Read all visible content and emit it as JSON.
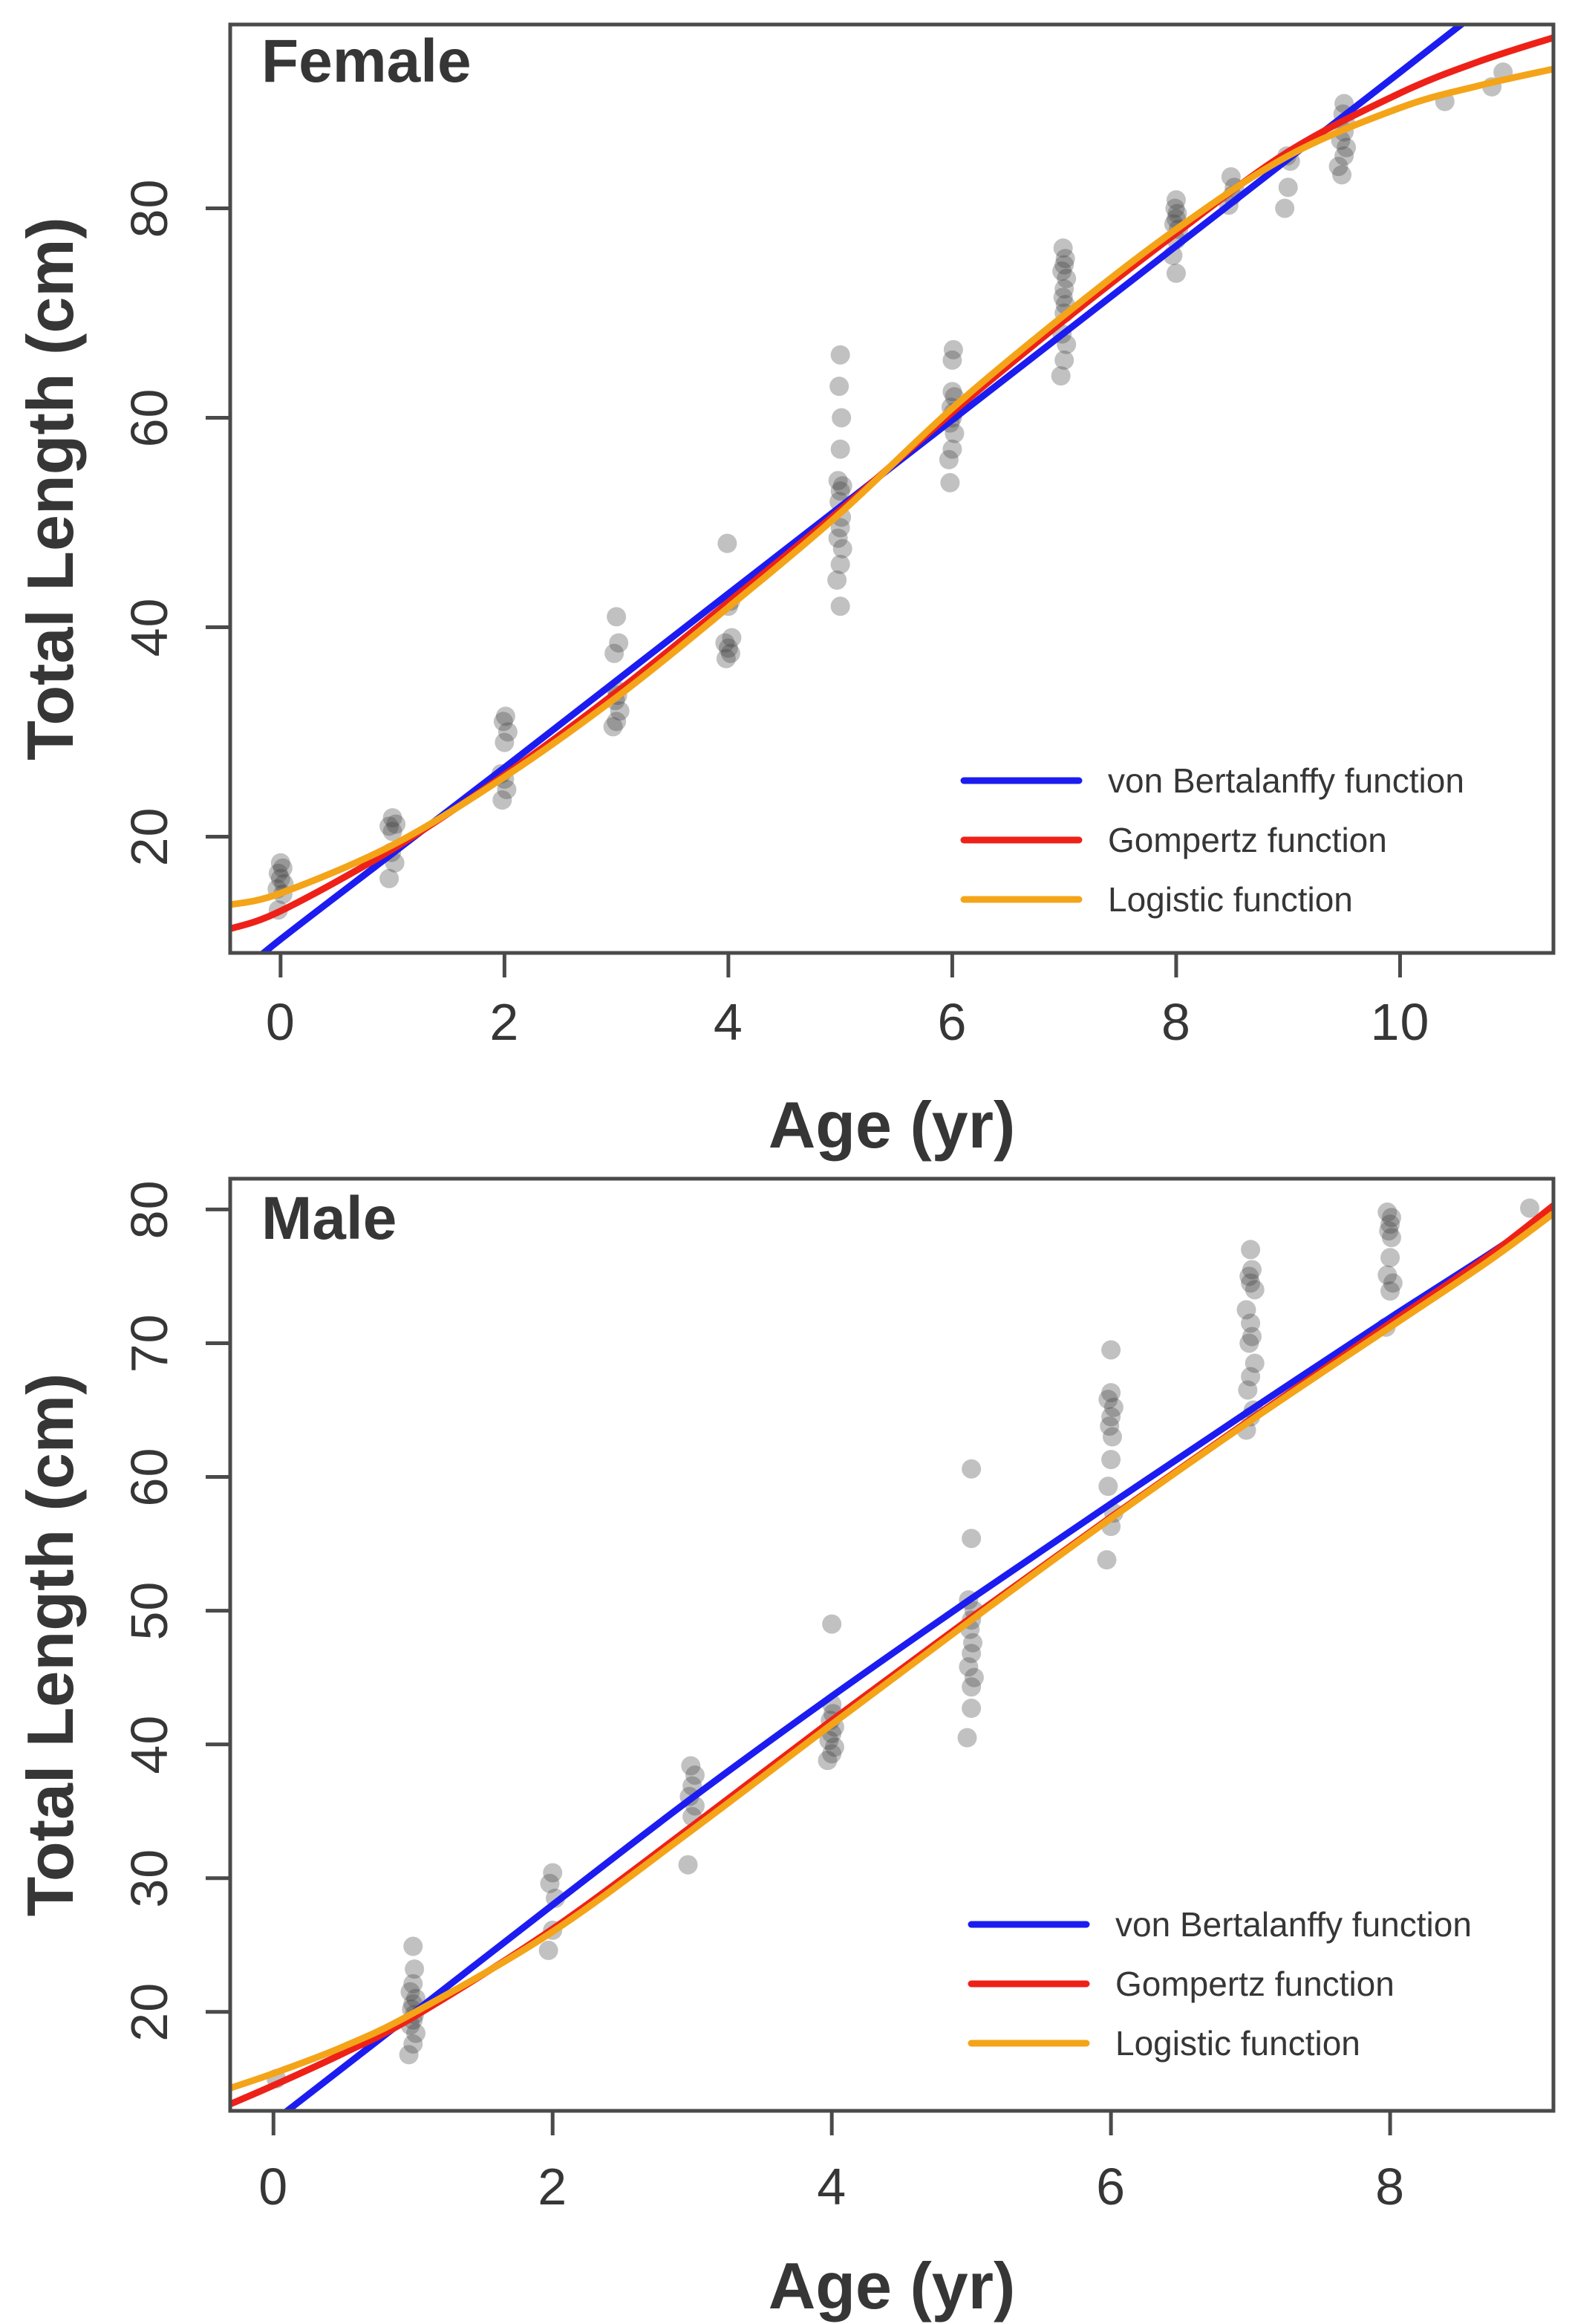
{
  "figure": {
    "background": "#ffffff",
    "axis_color": "#4a4a4a",
    "text_color": "#363636",
    "point_color": "#3d3d3d",
    "point_opacity": 0.32
  },
  "chart_data": [
    {
      "type": "scatter",
      "panel": "female",
      "title": "Female",
      "xlabel": "Age (yr)",
      "ylabel": "Total Length (cm)",
      "xlim": [
        -0.45,
        11.37
      ],
      "ylim": [
        8.9,
        97.55
      ],
      "xticks": [
        0,
        2,
        4,
        6,
        8,
        10
      ],
      "yticks": [
        20,
        40,
        60,
        80
      ],
      "grid": false,
      "legend_position": "lower-right",
      "legend": [
        {
          "label": "von Bertalanffy function",
          "color": "#1c1cf0"
        },
        {
          "label": "Gompertz function",
          "color": "#ee2118"
        },
        {
          "label": "Logistic function",
          "color": "#f4a418"
        }
      ],
      "points": [
        [
          -0.02,
          13
        ],
        [
          0.02,
          14.5
        ],
        [
          -0.03,
          15
        ],
        [
          0.03,
          15.5
        ],
        [
          0,
          16
        ],
        [
          -0.02,
          16.5
        ],
        [
          0.02,
          17
        ],
        [
          0,
          17.5
        ],
        [
          0.97,
          16
        ],
        [
          1.02,
          17.5
        ],
        [
          0.99,
          18.5
        ],
        [
          1.0,
          20.5
        ],
        [
          0.97,
          21
        ],
        [
          1.03,
          21.2
        ],
        [
          1.0,
          21.8
        ],
        [
          1.98,
          23.5
        ],
        [
          2.02,
          24.5
        ],
        [
          2.0,
          25.5
        ],
        [
          1.97,
          26
        ],
        [
          2.0,
          29
        ],
        [
          2.03,
          30
        ],
        [
          1.99,
          31
        ],
        [
          2.01,
          31.5
        ],
        [
          2.97,
          30.5
        ],
        [
          3.0,
          31
        ],
        [
          3.03,
          32
        ],
        [
          2.99,
          33
        ],
        [
          3.01,
          33.5
        ],
        [
          3.0,
          34
        ],
        [
          2.98,
          37.5
        ],
        [
          3.02,
          38.5
        ],
        [
          3.0,
          41
        ],
        [
          3.98,
          37
        ],
        [
          4.02,
          37.5
        ],
        [
          4.0,
          38
        ],
        [
          3.97,
          38.5
        ],
        [
          4.03,
          39
        ],
        [
          4.0,
          42
        ],
        [
          4.02,
          42.5
        ],
        [
          3.99,
          48
        ],
        [
          5.0,
          42
        ],
        [
          4.97,
          44.5
        ],
        [
          5.0,
          46
        ],
        [
          5.02,
          47.5
        ],
        [
          4.98,
          48.5
        ],
        [
          5.0,
          49.5
        ],
        [
          5.01,
          50.5
        ],
        [
          4.99,
          52
        ],
        [
          5.0,
          53
        ],
        [
          5.02,
          53.5
        ],
        [
          4.98,
          54
        ],
        [
          5.0,
          57
        ],
        [
          5.01,
          60
        ],
        [
          4.99,
          63
        ],
        [
          5.0,
          66
        ],
        [
          5.98,
          53.8
        ],
        [
          5.97,
          56
        ],
        [
          6.0,
          57
        ],
        [
          6.02,
          58.5
        ],
        [
          5.98,
          59.5
        ],
        [
          6.0,
          60
        ],
        [
          6.01,
          60.5
        ],
        [
          5.99,
          61
        ],
        [
          6.02,
          62
        ],
        [
          6.0,
          62.5
        ],
        [
          6.0,
          65.5
        ],
        [
          6.01,
          66.5
        ],
        [
          6.97,
          64
        ],
        [
          7.0,
          65.5
        ],
        [
          7.02,
          67
        ],
        [
          6.98,
          68
        ],
        [
          7.0,
          70
        ],
        [
          7.01,
          70.8
        ],
        [
          6.99,
          71.5
        ],
        [
          7.0,
          72.3
        ],
        [
          7.02,
          73.3
        ],
        [
          6.98,
          74
        ],
        [
          7.0,
          74.6
        ],
        [
          7.01,
          75.2
        ],
        [
          6.99,
          76.2
        ],
        [
          8.0,
          73.8
        ],
        [
          7.97,
          75.5
        ],
        [
          8.0,
          77
        ],
        [
          8.02,
          78
        ],
        [
          7.98,
          78.5
        ],
        [
          8.0,
          79
        ],
        [
          8.01,
          79.5
        ],
        [
          7.99,
          80
        ],
        [
          8.0,
          80.8
        ],
        [
          8.47,
          80.3
        ],
        [
          8.5,
          81.2
        ],
        [
          8.52,
          82
        ],
        [
          8.49,
          83
        ],
        [
          8.97,
          80
        ],
        [
          9.0,
          82
        ],
        [
          9.02,
          84.5
        ],
        [
          8.99,
          85
        ],
        [
          9.48,
          83.2
        ],
        [
          9.45,
          84
        ],
        [
          9.5,
          85
        ],
        [
          9.52,
          85.8
        ],
        [
          9.47,
          86.5
        ],
        [
          9.5,
          87.3
        ],
        [
          9.51,
          88.2
        ],
        [
          9.49,
          89
        ],
        [
          9.5,
          90
        ],
        [
          10.4,
          90.2
        ],
        [
          10.82,
          91.6
        ],
        [
          10.92,
          93
        ]
      ],
      "series": [
        {
          "name": "von Bertalanffy function",
          "color": "#1c1cf0",
          "samples": [
            [
              -0.45,
              6.2
            ],
            [
              0,
              10.2
            ],
            [
              1,
              18.4
            ],
            [
              2,
              26.6
            ],
            [
              3,
              34.9
            ],
            [
              4,
              43.2
            ],
            [
              5,
              51.5
            ],
            [
              6,
              59.8
            ],
            [
              7,
              68.1
            ],
            [
              8,
              76.4
            ],
            [
              9,
              84.7
            ],
            [
              10,
              93
            ],
            [
              10.6,
              98
            ],
            [
              10.9,
              100.5
            ]
          ]
        },
        {
          "name": "Gompertz function",
          "color": "#ee2118",
          "samples": [
            [
              -0.45,
              11.2
            ],
            [
              0,
              12.9
            ],
            [
              1,
              18.8
            ],
            [
              2,
              25.9
            ],
            [
              3,
              33.8
            ],
            [
              4,
              42.4
            ],
            [
              5,
              51.2
            ],
            [
              6,
              60.5
            ],
            [
              7,
              69.3
            ],
            [
              8,
              77.6
            ],
            [
              9,
              85.4
            ],
            [
              10,
              91
            ],
            [
              10.7,
              94
            ],
            [
              11.37,
              96.3
            ]
          ]
        },
        {
          "name": "Logistic function",
          "color": "#f4a418",
          "samples": [
            [
              -0.45,
              13.5
            ],
            [
              0,
              14.6
            ],
            [
              1,
              19.2
            ],
            [
              2,
              25.7
            ],
            [
              3,
              33.3
            ],
            [
              4,
              41.9
            ],
            [
              5,
              50.9
            ],
            [
              6,
              60.9
            ],
            [
              7,
              69.8
            ],
            [
              8,
              78
            ],
            [
              9,
              85
            ],
            [
              10,
              89.6
            ],
            [
              10.7,
              91.7
            ],
            [
              11.37,
              93.3
            ]
          ]
        }
      ]
    },
    {
      "type": "scatter",
      "panel": "male",
      "title": "Male",
      "xlabel": "Age (yr)",
      "ylabel": "Total Length (cm)",
      "xlim": [
        -0.31,
        9.17
      ],
      "ylim": [
        12.6,
        82.3
      ],
      "xticks": [
        0,
        2,
        4,
        6,
        8
      ],
      "yticks": [
        20,
        30,
        40,
        50,
        60,
        70,
        80
      ],
      "grid": false,
      "legend_position": "lower-right",
      "legend": [
        {
          "label": "von Bertalanffy function",
          "color": "#1c1cf0"
        },
        {
          "label": "Gompertz function",
          "color": "#ee2118"
        },
        {
          "label": "Logistic function",
          "color": "#f4a418"
        }
      ],
      "points": [
        [
          0.02,
          15
        ],
        [
          0.97,
          16.8
        ],
        [
          1.0,
          17.6
        ],
        [
          1.02,
          18.4
        ],
        [
          0.98,
          19
        ],
        [
          1.0,
          19.4
        ],
        [
          1.01,
          19.8
        ],
        [
          0.99,
          20.2
        ],
        [
          1.0,
          20.6
        ],
        [
          1.02,
          21
        ],
        [
          0.98,
          21.5
        ],
        [
          1.0,
          22.1
        ],
        [
          1.01,
          23.2
        ],
        [
          1.0,
          24.9
        ],
        [
          1.97,
          24.6
        ],
        [
          2.0,
          26.1
        ],
        [
          2.02,
          28.5
        ],
        [
          1.98,
          29.6
        ],
        [
          2.0,
          30.4
        ],
        [
          2.97,
          31
        ],
        [
          3.0,
          34.6
        ],
        [
          3.02,
          35.4
        ],
        [
          2.98,
          36.1
        ],
        [
          3.0,
          36.9
        ],
        [
          3.02,
          37.7
        ],
        [
          2.99,
          38.4
        ],
        [
          3.97,
          38.8
        ],
        [
          4.0,
          39.3
        ],
        [
          4.02,
          39.8
        ],
        [
          3.98,
          40.3
        ],
        [
          4.0,
          40.8
        ],
        [
          4.02,
          41.3
        ],
        [
          3.99,
          41.8
        ],
        [
          4.01,
          42.3
        ],
        [
          4.0,
          43
        ],
        [
          4.0,
          49
        ],
        [
          4.97,
          40.5
        ],
        [
          5.0,
          42.7
        ],
        [
          5.0,
          44.3
        ],
        [
          5.02,
          45
        ],
        [
          4.98,
          45.8
        ],
        [
          5.0,
          46.8
        ],
        [
          5.01,
          47.6
        ],
        [
          4.99,
          48.6
        ],
        [
          5.0,
          49.3
        ],
        [
          5.02,
          50
        ],
        [
          4.98,
          50.8
        ],
        [
          5.0,
          55.4
        ],
        [
          5.0,
          60.6
        ],
        [
          5.97,
          53.8
        ],
        [
          6.0,
          56.3
        ],
        [
          6.02,
          57.3
        ],
        [
          5.98,
          59.3
        ],
        [
          6.0,
          61.3
        ],
        [
          6.01,
          63
        ],
        [
          5.99,
          63.8
        ],
        [
          6.0,
          64.5
        ],
        [
          6.02,
          65.2
        ],
        [
          5.98,
          65.8
        ],
        [
          6.0,
          66.3
        ],
        [
          6.0,
          69.5
        ],
        [
          6.97,
          63.5
        ],
        [
          7.0,
          64.5
        ],
        [
          7.02,
          65
        ],
        [
          6.98,
          66.5
        ],
        [
          7.0,
          67.5
        ],
        [
          7.03,
          68.5
        ],
        [
          6.99,
          70
        ],
        [
          7.01,
          70.5
        ],
        [
          7.0,
          71.5
        ],
        [
          6.97,
          72.5
        ],
        [
          7.03,
          74
        ],
        [
          7.0,
          74.5
        ],
        [
          6.99,
          75
        ],
        [
          7.01,
          75.5
        ],
        [
          7.0,
          77
        ],
        [
          7.97,
          71.2
        ],
        [
          8.0,
          73.9
        ],
        [
          8.02,
          74.5
        ],
        [
          7.98,
          75.1
        ],
        [
          8.0,
          76.4
        ],
        [
          8.01,
          77.9
        ],
        [
          7.99,
          78.4
        ],
        [
          8.0,
          78.9
        ],
        [
          8.01,
          79.4
        ],
        [
          7.98,
          79.8
        ],
        [
          9.0,
          80.1
        ]
      ],
      "series": [
        {
          "name": "von Bertalanffy function",
          "color": "#1c1cf0",
          "samples": [
            [
              -0.31,
              9.4
            ],
            [
              0,
              11.8
            ],
            [
              1,
              19.9
            ],
            [
              2,
              28
            ],
            [
              3,
              36
            ],
            [
              4,
              43.6
            ],
            [
              5,
              50.9
            ],
            [
              6,
              58
            ],
            [
              7,
              65
            ],
            [
              8,
              71.9
            ],
            [
              8.7,
              76.6
            ],
            [
              9.17,
              79.9
            ]
          ]
        },
        {
          "name": "Gompertz function",
          "color": "#ee2118",
          "samples": [
            [
              -0.31,
              13.1
            ],
            [
              0,
              14.5
            ],
            [
              0.5,
              16.9
            ],
            [
              1,
              19.6
            ],
            [
              2,
              26.2
            ],
            [
              3,
              33.9
            ],
            [
              4,
              41.8
            ],
            [
              5,
              49.5
            ],
            [
              6,
              57
            ],
            [
              7,
              64.3
            ],
            [
              8,
              71.5
            ],
            [
              8.7,
              76.5
            ],
            [
              9.17,
              80.3
            ]
          ]
        },
        {
          "name": "Logistic function",
          "color": "#f4a418",
          "samples": [
            [
              -0.31,
              14.3
            ],
            [
              0,
              15.4
            ],
            [
              0.5,
              17.4
            ],
            [
              1,
              19.9
            ],
            [
              2,
              26
            ],
            [
              3,
              33.6
            ],
            [
              4,
              41.5
            ],
            [
              5,
              49.3
            ],
            [
              6,
              56.9
            ],
            [
              7,
              64.2
            ],
            [
              8,
              71.2
            ],
            [
              8.7,
              76.1
            ],
            [
              9.17,
              79.7
            ]
          ]
        }
      ]
    }
  ]
}
